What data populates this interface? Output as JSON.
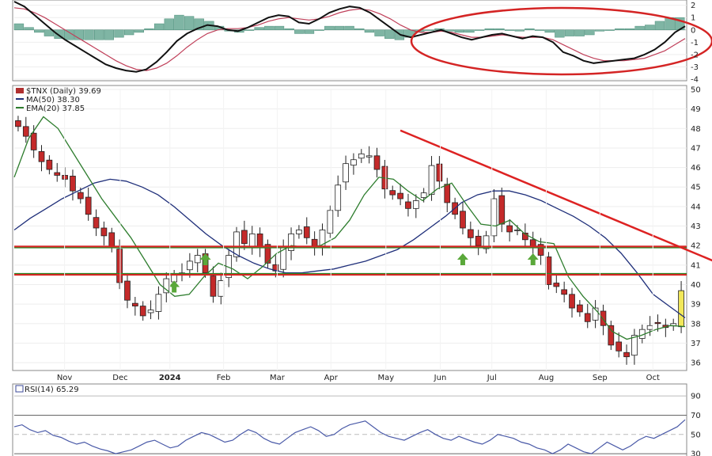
{
  "chart_data": [
    {
      "panel": "macd",
      "type": "line",
      "y_ticks": [
        2,
        1,
        0,
        -1,
        -2,
        -3,
        -4
      ],
      "ylim": [
        -4,
        2.3
      ],
      "legend": [],
      "series": [
        {
          "values": [
            2.3,
            1.9,
            1.2,
            0.5,
            -0.2,
            -0.8,
            -1.3,
            -1.8,
            -2.3,
            -2.8,
            -3.1,
            -3.3,
            -3.4,
            -3.2,
            -2.6,
            -1.8,
            -0.9,
            -0.3,
            0.1,
            0.4,
            0.3,
            0.0,
            -0.1,
            0.2,
            0.6,
            1.0,
            1.2,
            1.1,
            0.6,
            0.5,
            0.9,
            1.4,
            1.7,
            1.9,
            1.8,
            1.4,
            0.8,
            0.2,
            -0.4,
            -0.6,
            -0.4,
            -0.2,
            0.0,
            -0.3,
            -0.6,
            -0.8,
            -0.6,
            -0.4,
            -0.3,
            -0.5,
            -0.7,
            -0.5,
            -0.6,
            -1.0,
            -1.8,
            -2.1,
            -2.5,
            -2.7,
            -2.6,
            -2.5,
            -2.4,
            -2.3,
            -2.0,
            -1.6,
            -1.0,
            -0.2,
            0.3
          ]
        },
        {
          "values": [
            1.8,
            1.7,
            1.4,
            1.0,
            0.5,
            0.0,
            -0.5,
            -1.0,
            -1.5,
            -2.0,
            -2.5,
            -2.9,
            -3.2,
            -3.3,
            -3.1,
            -2.7,
            -2.1,
            -1.4,
            -0.8,
            -0.3,
            0.0,
            0.1,
            0.1,
            0.2,
            0.4,
            0.7,
            0.9,
            1.0,
            0.9,
            0.8,
            0.9,
            1.1,
            1.4,
            1.6,
            1.7,
            1.6,
            1.3,
            0.9,
            0.4,
            0.0,
            -0.2,
            -0.2,
            -0.1,
            -0.2,
            -0.4,
            -0.6,
            -0.6,
            -0.5,
            -0.4,
            -0.5,
            -0.6,
            -0.6,
            -0.6,
            -0.8,
            -1.2,
            -1.6,
            -2.0,
            -2.3,
            -2.5,
            -2.5,
            -2.5,
            -2.4,
            -2.3,
            -2.0,
            -1.7,
            -1.2,
            -0.7
          ]
        }
      ],
      "histogram": [
        0.5,
        0.2,
        -0.2,
        -0.5,
        -0.7,
        -0.8,
        -0.8,
        -0.8,
        -0.8,
        -0.8,
        -0.6,
        -0.4,
        -0.2,
        0.1,
        0.5,
        0.9,
        1.2,
        1.1,
        0.9,
        0.7,
        0.3,
        -0.1,
        -0.2,
        0.0,
        0.2,
        0.3,
        0.3,
        0.1,
        -0.3,
        -0.3,
        0.0,
        0.3,
        0.3,
        0.3,
        0.1,
        -0.2,
        -0.5,
        -0.7,
        -0.8,
        -0.6,
        -0.2,
        0.0,
        0.1,
        -0.1,
        -0.2,
        -0.2,
        0.0,
        0.1,
        0.1,
        0.0,
        -0.1,
        0.1,
        0.0,
        -0.2,
        -0.6,
        -0.5,
        -0.5,
        -0.4,
        -0.1,
        0.0,
        0.1,
        0.1,
        0.3,
        0.4,
        0.7,
        1.0,
        1.0
      ]
    },
    {
      "panel": "price",
      "type": "candlestick",
      "title": "$TNX (Daily) 39.69",
      "legend": [
        {
          "text": "MA(50) 38.30",
          "color": "#1f2f7a"
        },
        {
          "text": "EMA(20) 37.85",
          "color": "#2e7d2e"
        }
      ],
      "y_ticks": [
        50,
        49,
        48,
        47,
        46,
        45,
        44,
        43,
        42,
        41,
        40,
        39,
        38,
        37,
        36
      ],
      "ylim": [
        35.8,
        50
      ],
      "x_ticks": [
        "Nov",
        "Dec",
        "2024",
        "Feb",
        "Mar",
        "Apr",
        "May",
        "Jun",
        "Jul",
        "Aug",
        "Sep",
        "Oct"
      ],
      "closes": [
        48.1,
        47.6,
        46.9,
        46.3,
        45.9,
        45.6,
        45.4,
        44.8,
        44.4,
        43.6,
        42.9,
        42.5,
        41.9,
        40.1,
        39.2,
        38.9,
        38.4,
        38.7,
        39.5,
        40.3,
        40.5,
        40.6,
        41.2,
        41.5,
        40.6,
        39.4,
        40.2,
        41.5,
        42.7,
        42.1,
        42.6,
        41.9,
        41.1,
        40.7,
        41.9,
        42.6,
        42.8,
        42.4,
        41.9,
        42.8,
        43.8,
        45.1,
        46.2,
        46.4,
        46.7,
        46.6,
        45.9,
        44.9,
        44.6,
        44.4,
        43.9,
        44.3,
        44.7,
        46.1,
        45.3,
        44.2,
        43.6,
        42.9,
        42.4,
        42.0,
        42.5,
        44.4,
        43.1,
        42.7,
        42.8,
        42.3,
        41.9,
        41.5,
        40.0,
        39.9,
        39.5,
        38.8,
        38.6,
        38.1,
        38.8,
        37.9,
        36.9,
        36.6,
        36.3,
        37.4,
        37.7,
        37.9,
        38.0,
        37.8,
        38.0,
        39.69
      ],
      "ma50": [
        42.8,
        43.4,
        43.9,
        44.4,
        44.8,
        45.2,
        45.4,
        45.3,
        45.0,
        44.6,
        44.0,
        43.3,
        42.6,
        42.0,
        41.5,
        41.1,
        40.8,
        40.6,
        40.6,
        40.7,
        40.8,
        41.0,
        41.2,
        41.5,
        41.8,
        42.3,
        42.9,
        43.5,
        44.2,
        44.6,
        44.8,
        44.8,
        44.6,
        44.3,
        43.9,
        43.5,
        43.0,
        42.4,
        41.6,
        40.6,
        39.5,
        38.9,
        38.3
      ],
      "ema20": [
        45.5,
        47.5,
        48.6,
        48.0,
        46.8,
        45.6,
        44.4,
        43.4,
        42.4,
        41.2,
        40.0,
        39.4,
        39.5,
        40.4,
        41.1,
        40.8,
        40.3,
        40.9,
        41.6,
        42.0,
        41.9,
        42.0,
        42.4,
        43.3,
        44.6,
        45.5,
        45.4,
        44.8,
        44.3,
        44.9,
        45.2,
        44.1,
        43.1,
        43.0,
        43.3,
        42.6,
        42.2,
        42.1,
        40.4,
        39.4,
        38.6,
        37.6,
        37.2,
        37.4,
        37.7,
        37.9,
        37.85
      ],
      "annotations": [
        {
          "type": "horizontal-line",
          "y": 41.9,
          "color": "#2a8a2a"
        },
        {
          "type": "horizontal-line",
          "y": 41.95,
          "color": "#dd2222"
        },
        {
          "type": "horizontal-line",
          "y": 40.55,
          "color": "#2a8a2a"
        },
        {
          "type": "horizontal-line",
          "y": 40.5,
          "color": "#dd2222"
        },
        {
          "type": "trendline",
          "from": {
            "idx": 49,
            "y": 47.9
          },
          "to": {
            "idx": 91,
            "y": 40.9
          },
          "color": "#dd2222"
        },
        {
          "type": "arrow",
          "idx": 20,
          "y": 40.2,
          "color": "#5aa83a"
        },
        {
          "type": "arrow",
          "idx": 24,
          "y": 41.6,
          "color": "#5aa83a"
        },
        {
          "type": "arrow",
          "idx": 57,
          "y": 41.6,
          "color": "#5aa83a"
        },
        {
          "type": "arrow",
          "idx": 66,
          "y": 41.6,
          "color": "#5aa83a"
        }
      ]
    },
    {
      "panel": "rsi",
      "type": "line",
      "title": "RSI(14) 65.29",
      "y_ticks": [
        90,
        70,
        50,
        30
      ],
      "ylim": [
        26,
        100
      ],
      "series": [
        {
          "values": [
            58,
            60,
            55,
            52,
            54,
            49,
            47,
            43,
            40,
            42,
            38,
            35,
            33,
            30,
            32,
            34,
            38,
            42,
            44,
            40,
            36,
            38,
            44,
            48,
            52,
            50,
            46,
            42,
            44,
            50,
            55,
            52,
            46,
            42,
            40,
            46,
            52,
            55,
            58,
            54,
            48,
            50,
            56,
            60,
            62,
            64,
            58,
            52,
            48,
            46,
            44,
            48,
            52,
            55,
            50,
            46,
            44,
            48,
            45,
            42,
            40,
            44,
            50,
            48,
            46,
            42,
            40,
            36,
            34,
            30,
            34,
            40,
            36,
            32,
            30,
            36,
            42,
            38,
            34,
            38,
            44,
            48,
            46,
            50,
            54,
            58,
            65.29
          ]
        }
      ]
    }
  ]
}
